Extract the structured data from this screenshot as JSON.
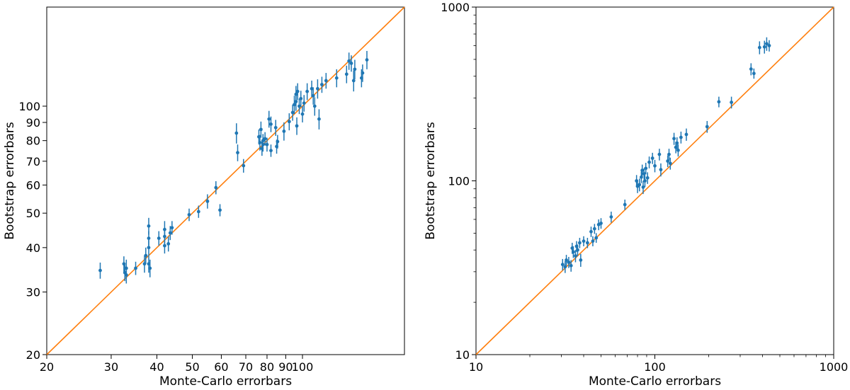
{
  "chart_data": [
    {
      "type": "scatter",
      "scale": "log-log",
      "title": "",
      "xlabel": "Monte-Carlo errorbars",
      "ylabel": "Bootstrap errorbars",
      "xlim": [
        20,
        190
      ],
      "ylim": [
        20,
        190
      ],
      "x_ticks": [
        {
          "value": 20,
          "label": "20"
        },
        {
          "value": 30,
          "label": "30"
        },
        {
          "value": 40,
          "label": "40"
        },
        {
          "value": 50,
          "label": "50"
        },
        {
          "value": 60,
          "label": "60"
        },
        {
          "value": 70,
          "label": "70"
        },
        {
          "value": 80,
          "label": "80"
        },
        {
          "value": 90,
          "label": "90"
        },
        {
          "value": 100,
          "label": "100"
        }
      ],
      "y_ticks": [
        {
          "value": 20,
          "label": "20"
        },
        {
          "value": 30,
          "label": "30"
        },
        {
          "value": 40,
          "label": "40"
        },
        {
          "value": 50,
          "label": "50"
        },
        {
          "value": 60,
          "label": "60"
        },
        {
          "value": 70,
          "label": "70"
        },
        {
          "value": 80,
          "label": "80"
        },
        {
          "value": 90,
          "label": "90"
        },
        {
          "value": 100,
          "label": "100"
        }
      ],
      "reference_line": "y = x",
      "series": [
        {
          "name": "errorbar points",
          "color": "#1f77b4",
          "points": [
            {
              "x": 28,
              "y": 34.5,
              "err": 1.8
            },
            {
              "x": 32.5,
              "y": 36,
              "err": 1.8
            },
            {
              "x": 32.7,
              "y": 34,
              "err": 1.8
            },
            {
              "x": 33,
              "y": 35,
              "err": 2.0
            },
            {
              "x": 33,
              "y": 33.5,
              "err": 1.8
            },
            {
              "x": 35,
              "y": 35,
              "err": 1.5
            },
            {
              "x": 37,
              "y": 36,
              "err": 2.0
            },
            {
              "x": 37.3,
              "y": 38,
              "err": 2.0
            },
            {
              "x": 38,
              "y": 46,
              "err": 2.5
            },
            {
              "x": 38,
              "y": 42.5,
              "err": 2.0
            },
            {
              "x": 38,
              "y": 36,
              "err": 2.0
            },
            {
              "x": 38.3,
              "y": 35,
              "err": 2.0
            },
            {
              "x": 38,
              "y": 40,
              "err": 2.0
            },
            {
              "x": 40.5,
              "y": 42.5,
              "err": 2.0
            },
            {
              "x": 42,
              "y": 45,
              "err": 2.5
            },
            {
              "x": 42,
              "y": 43,
              "err": 2.0
            },
            {
              "x": 42,
              "y": 40.5,
              "err": 2.0
            },
            {
              "x": 43,
              "y": 41,
              "err": 2.0
            },
            {
              "x": 43.5,
              "y": 44,
              "err": 2.0
            },
            {
              "x": 44,
              "y": 45.5,
              "err": 2.0
            },
            {
              "x": 49,
              "y": 49.5,
              "err": 2.0
            },
            {
              "x": 52,
              "y": 50.5,
              "err": 2.0
            },
            {
              "x": 55,
              "y": 54,
              "err": 2.5
            },
            {
              "x": 58,
              "y": 59,
              "err": 2.5
            },
            {
              "x": 59.5,
              "y": 51,
              "err": 2.0
            },
            {
              "x": 66,
              "y": 84,
              "err": 5.5
            },
            {
              "x": 66.5,
              "y": 74,
              "err": 4.0
            },
            {
              "x": 69,
              "y": 68,
              "err": 3.0
            },
            {
              "x": 76,
              "y": 82,
              "err": 4.0
            },
            {
              "x": 76.5,
              "y": 79,
              "err": 4.0
            },
            {
              "x": 77,
              "y": 86,
              "err": 4.5
            },
            {
              "x": 77.5,
              "y": 76,
              "err": 3.5
            },
            {
              "x": 78,
              "y": 80,
              "err": 3.5
            },
            {
              "x": 78,
              "y": 78,
              "err": 3.5
            },
            {
              "x": 79,
              "y": 81,
              "err": 3.5
            },
            {
              "x": 80,
              "y": 78,
              "err": 3.5
            },
            {
              "x": 81,
              "y": 92,
              "err": 5.0
            },
            {
              "x": 82,
              "y": 75,
              "err": 3.0
            },
            {
              "x": 82,
              "y": 89,
              "err": 4.5
            },
            {
              "x": 84.5,
              "y": 87,
              "err": 4.5
            },
            {
              "x": 85,
              "y": 77,
              "err": 3.5
            },
            {
              "x": 85.5,
              "y": 79.5,
              "err": 3.5
            },
            {
              "x": 89,
              "y": 85,
              "err": 5.0
            },
            {
              "x": 92,
              "y": 90.5,
              "err": 5.0
            },
            {
              "x": 94,
              "y": 96,
              "err": 5.0
            },
            {
              "x": 95,
              "y": 101,
              "err": 6.0
            },
            {
              "x": 96,
              "y": 103,
              "err": 6.0
            },
            {
              "x": 96,
              "y": 108,
              "err": 6.0
            },
            {
              "x": 96.5,
              "y": 88,
              "err": 5.0
            },
            {
              "x": 97,
              "y": 110,
              "err": 6.0
            },
            {
              "x": 98,
              "y": 100,
              "err": 5.0
            },
            {
              "x": 99,
              "y": 105,
              "err": 5.5
            },
            {
              "x": 100,
              "y": 95,
              "err": 5.0
            },
            {
              "x": 101,
              "y": 102,
              "err": 5.5
            },
            {
              "x": 103,
              "y": 110,
              "err": 6.0
            },
            {
              "x": 106,
              "y": 112,
              "err": 6.0
            },
            {
              "x": 107,
              "y": 107,
              "err": 6.0
            },
            {
              "x": 108,
              "y": 100,
              "err": 6.0
            },
            {
              "x": 110,
              "y": 112,
              "err": 7.0
            },
            {
              "x": 111,
              "y": 92,
              "err": 6.0
            },
            {
              "x": 113,
              "y": 115,
              "err": 6.0
            },
            {
              "x": 116,
              "y": 118,
              "err": 6.0
            },
            {
              "x": 124,
              "y": 120,
              "err": 7.0
            },
            {
              "x": 132,
              "y": 123,
              "err": 7.0
            },
            {
              "x": 134,
              "y": 134,
              "err": 7.5
            },
            {
              "x": 136,
              "y": 132,
              "err": 7.0
            },
            {
              "x": 138,
              "y": 118,
              "err": 8.0
            },
            {
              "x": 139,
              "y": 127,
              "err": 8.0
            },
            {
              "x": 145,
              "y": 120,
              "err": 7.0
            },
            {
              "x": 146,
              "y": 124,
              "err": 7.0
            },
            {
              "x": 150,
              "y": 135,
              "err": 8.0
            }
          ]
        }
      ]
    },
    {
      "type": "scatter",
      "scale": "log-log",
      "title": "",
      "xlabel": "Monte-Carlo errorbars",
      "ylabel": "Bootstrap errorbars",
      "xlim": [
        10,
        1000
      ],
      "ylim": [
        10,
        1000
      ],
      "x_ticks": [
        {
          "value": 10,
          "label": "10"
        },
        {
          "value": 100,
          "label": "100"
        },
        {
          "value": 1000,
          "label": "1000"
        }
      ],
      "y_ticks": [
        {
          "value": 10,
          "label": "10"
        },
        {
          "value": 100,
          "label": "100"
        },
        {
          "value": 1000,
          "label": "1000"
        }
      ],
      "reference_line": "y = x",
      "series": [
        {
          "name": "errorbar points",
          "color": "#1f77b4",
          "points": [
            {
              "x": 30.5,
              "y": 33,
              "err": 2.5
            },
            {
              "x": 31.5,
              "y": 32,
              "err": 2.5
            },
            {
              "x": 32,
              "y": 35,
              "err": 2.5
            },
            {
              "x": 33,
              "y": 34,
              "err": 2.5
            },
            {
              "x": 34,
              "y": 32.5,
              "err": 2.5
            },
            {
              "x": 34.5,
              "y": 41,
              "err": 3.0
            },
            {
              "x": 35,
              "y": 39,
              "err": 3.0
            },
            {
              "x": 36,
              "y": 37,
              "err": 3.0
            },
            {
              "x": 36.5,
              "y": 42,
              "err": 3.0
            },
            {
              "x": 37,
              "y": 40,
              "err": 3.0
            },
            {
              "x": 38,
              "y": 44,
              "err": 3.0
            },
            {
              "x": 38.5,
              "y": 35,
              "err": 3.0
            },
            {
              "x": 40,
              "y": 45,
              "err": 3.0
            },
            {
              "x": 42,
              "y": 44,
              "err": 3.0
            },
            {
              "x": 44,
              "y": 51,
              "err": 3.5
            },
            {
              "x": 45,
              "y": 45,
              "err": 3.0
            },
            {
              "x": 46,
              "y": 53,
              "err": 3.5
            },
            {
              "x": 47,
              "y": 47,
              "err": 3.0
            },
            {
              "x": 48.5,
              "y": 56,
              "err": 4.0
            },
            {
              "x": 50,
              "y": 57,
              "err": 4.0
            },
            {
              "x": 57,
              "y": 62,
              "err": 4.5
            },
            {
              "x": 68,
              "y": 73,
              "err": 5.0
            },
            {
              "x": 79,
              "y": 100,
              "err": 8.0
            },
            {
              "x": 80,
              "y": 93,
              "err": 8.0
            },
            {
              "x": 82,
              "y": 95,
              "err": 8.0
            },
            {
              "x": 84,
              "y": 105,
              "err": 8.0
            },
            {
              "x": 85,
              "y": 115,
              "err": 9.0
            },
            {
              "x": 86,
              "y": 92,
              "err": 8.0
            },
            {
              "x": 87,
              "y": 110,
              "err": 8.0
            },
            {
              "x": 88,
              "y": 100,
              "err": 8.0
            },
            {
              "x": 89,
              "y": 118,
              "err": 9.0
            },
            {
              "x": 91,
              "y": 104,
              "err": 8.0
            },
            {
              "x": 93,
              "y": 128,
              "err": 10.0
            },
            {
              "x": 97,
              "y": 135,
              "err": 10.0
            },
            {
              "x": 100,
              "y": 122,
              "err": 10.0
            },
            {
              "x": 106,
              "y": 142,
              "err": 11.0
            },
            {
              "x": 108,
              "y": 116,
              "err": 10.0
            },
            {
              "x": 118,
              "y": 130,
              "err": 10.0
            },
            {
              "x": 120,
              "y": 142,
              "err": 11.0
            },
            {
              "x": 122,
              "y": 126,
              "err": 10.0
            },
            {
              "x": 128,
              "y": 175,
              "err": 14.0
            },
            {
              "x": 131,
              "y": 156,
              "err": 12.0
            },
            {
              "x": 133,
              "y": 165,
              "err": 13.0
            },
            {
              "x": 135,
              "y": 150,
              "err": 12.0
            },
            {
              "x": 140,
              "y": 178,
              "err": 14.0
            },
            {
              "x": 150,
              "y": 185,
              "err": 15.0
            },
            {
              "x": 196,
              "y": 205,
              "err": 16.0
            },
            {
              "x": 228,
              "y": 285,
              "err": 20.0
            },
            {
              "x": 268,
              "y": 283,
              "err": 22.0
            },
            {
              "x": 345,
              "y": 440,
              "err": 35.0
            },
            {
              "x": 358,
              "y": 415,
              "err": 28.0
            },
            {
              "x": 385,
              "y": 585,
              "err": 50.0
            },
            {
              "x": 410,
              "y": 590,
              "err": 50.0
            },
            {
              "x": 422,
              "y": 615,
              "err": 55.0
            },
            {
              "x": 436,
              "y": 600,
              "err": 45.0
            }
          ]
        }
      ]
    }
  ]
}
